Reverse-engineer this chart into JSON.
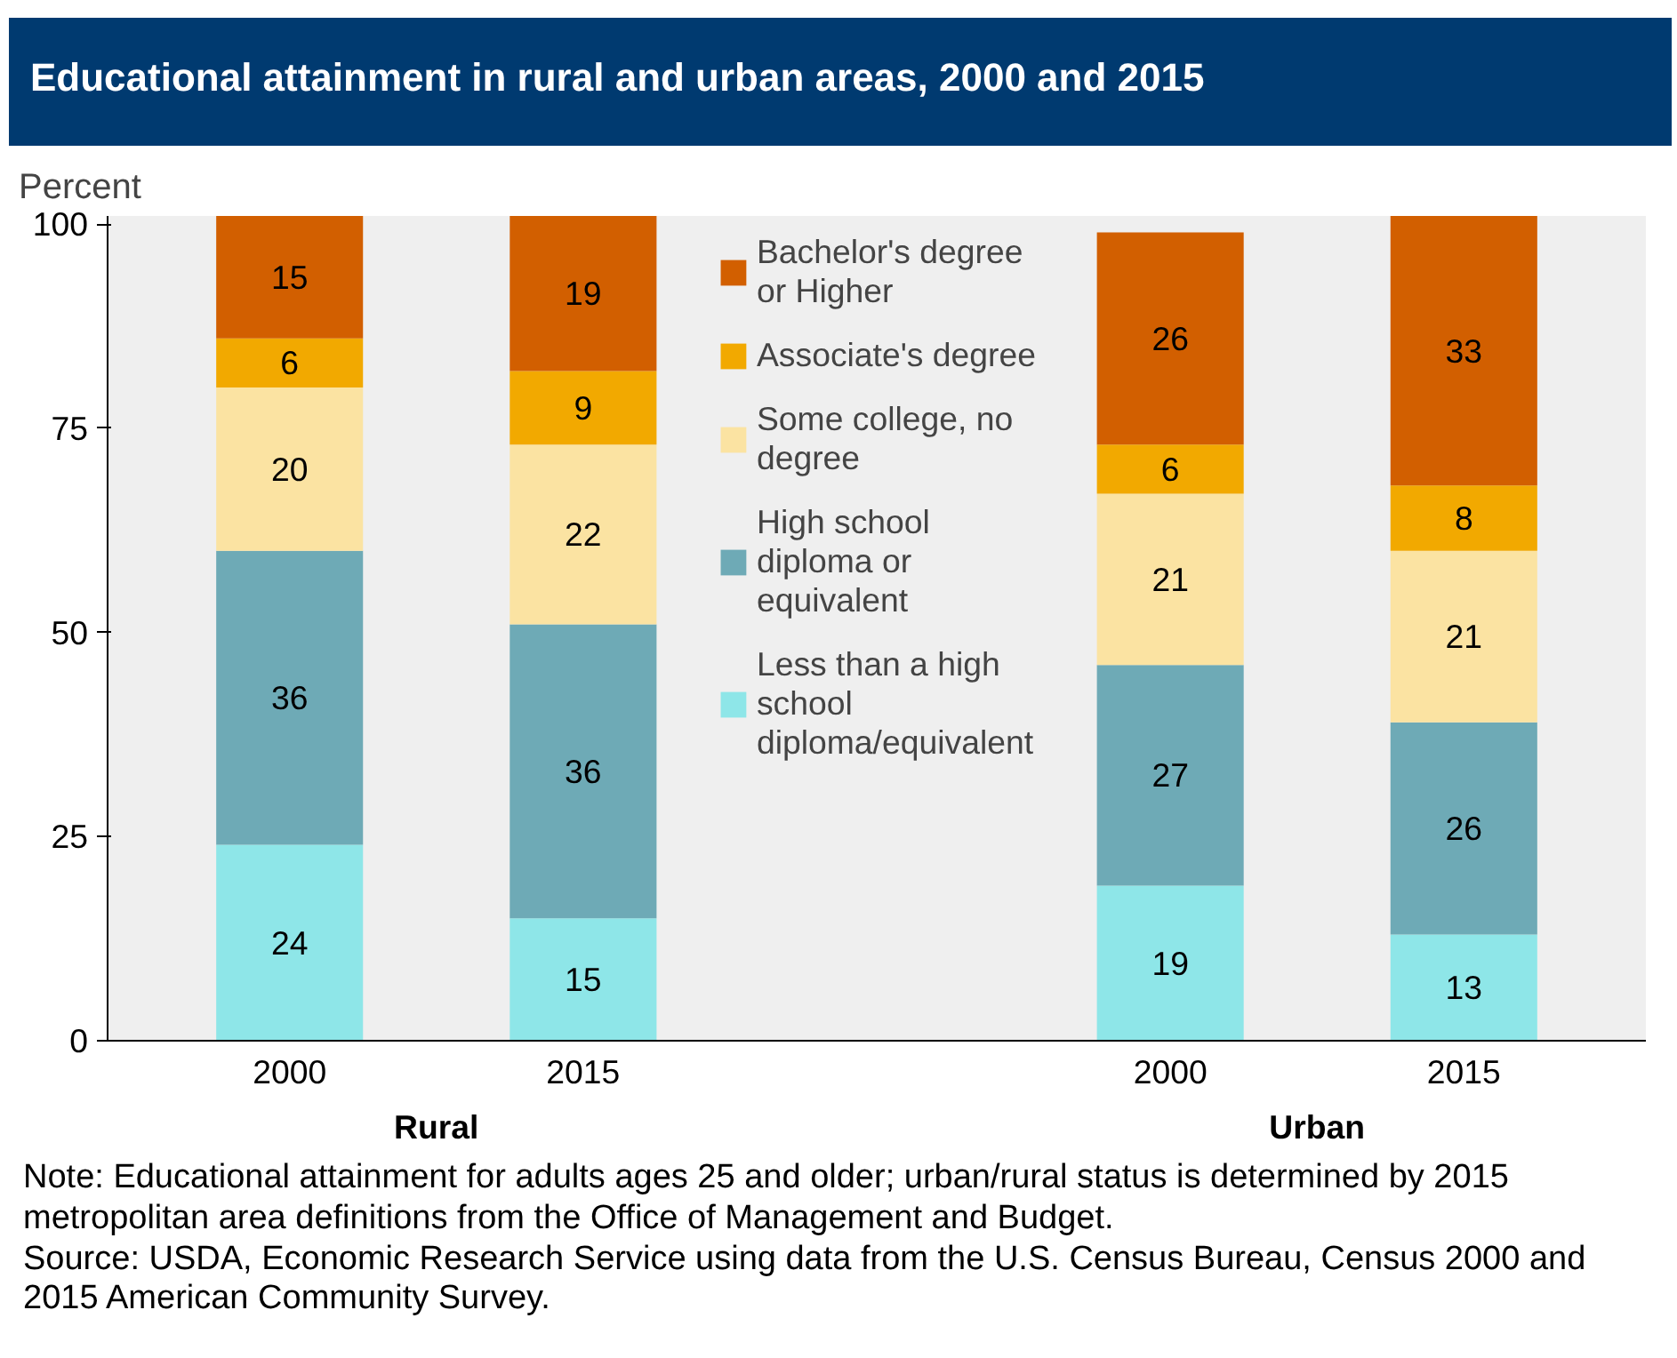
{
  "chart_data": {
    "type": "bar",
    "stacked": true,
    "title": "Educational attainment in rural and urban areas, 2000 and 2015",
    "ylabel": "Percent",
    "categories": [
      "2000",
      "2015",
      null,
      "2000",
      "2015"
    ],
    "series": [
      {
        "name": "Less than a high school diploma/equivalent",
        "color": "#8ee6e8",
        "values": [
          24,
          15,
          null,
          19,
          13
        ]
      },
      {
        "name": "High school diploma or equivalent",
        "color": "#6eaab6",
        "values": [
          36,
          36,
          null,
          27,
          26
        ]
      },
      {
        "name": "Some college, no degree",
        "color": "#fbe3a2",
        "values": [
          20,
          22,
          null,
          21,
          21
        ]
      },
      {
        "name": "Associate's degree",
        "color": "#f2a900",
        "values": [
          6,
          9,
          null,
          6,
          8
        ]
      },
      {
        "name": "Bachelor's degree or Higher",
        "color": "#d25f00",
        "values": [
          15,
          19,
          null,
          26,
          33
        ]
      }
    ],
    "ylim": [
      0,
      101
    ],
    "yticks": [
      0,
      25,
      50,
      75,
      100
    ],
    "grid": false,
    "legend": "top center",
    "data_labels": true,
    "annotations": [
      "Rural",
      "Urban",
      "Note: Educational attainment for adults ages 25 and older; urban/rural status is determined by 2015 metropolitan area definitions from the Office of Management and Budget.",
      "Source: USDA, Economic Research Service using data from the U.S. Census Bureau, Census 2000 and 2015 American Community Survey."
    ]
  }
}
